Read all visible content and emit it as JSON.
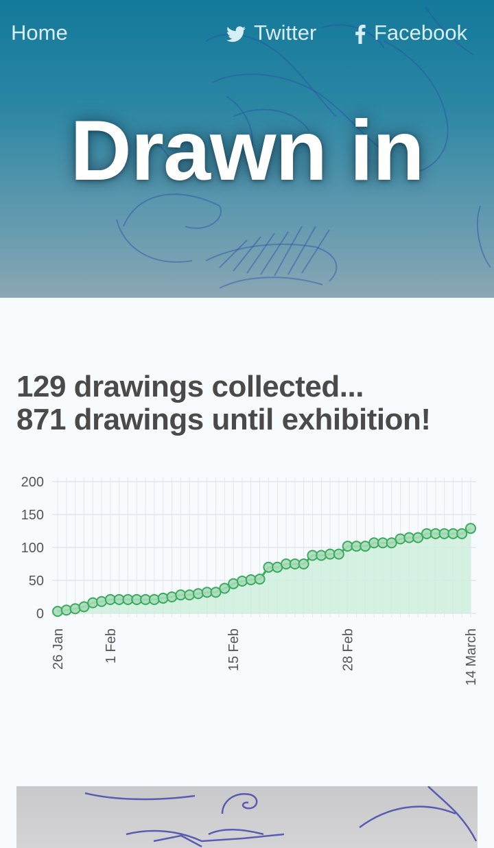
{
  "nav": {
    "home_label": "Home",
    "twitter_label": "Twitter",
    "facebook_label": "Facebook"
  },
  "hero": {
    "title": "Drawn in"
  },
  "headline": {
    "line1": "129 drawings collected...",
    "line2": "871 drawings until exhibition!"
  },
  "colors": {
    "accent_green": "#3aaa5c",
    "fill_green": "#cfeedd",
    "hero_blue": "#14799b"
  },
  "chart_data": {
    "type": "line",
    "area_fill": true,
    "grid": true,
    "ylim": [
      0,
      200
    ],
    "yticks": [
      0,
      50,
      100,
      150,
      200
    ],
    "xticks": [
      {
        "label": "26 Jan",
        "index": 0
      },
      {
        "label": "1 Feb",
        "index": 6
      },
      {
        "label": "15 Feb",
        "index": 20
      },
      {
        "label": "28 Feb",
        "index": 33
      },
      {
        "label": "14 March",
        "index": 47
      }
    ],
    "x_count": 48,
    "values": [
      3,
      5,
      7,
      10,
      16,
      18,
      21,
      21,
      21,
      21,
      21,
      21,
      23,
      25,
      28,
      28,
      30,
      32,
      32,
      38,
      45,
      49,
      51,
      52,
      70,
      70,
      75,
      75,
      75,
      88,
      88,
      90,
      90,
      102,
      102,
      102,
      107,
      107,
      107,
      113,
      115,
      115,
      121,
      121,
      121,
      121,
      121,
      129
    ]
  }
}
